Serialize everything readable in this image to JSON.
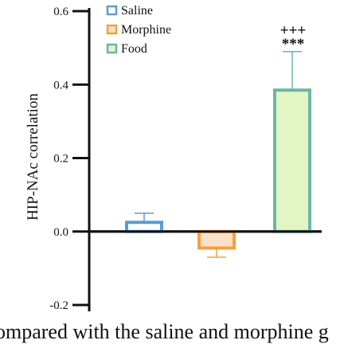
{
  "chart_data": {
    "type": "bar",
    "categories": [
      "Saline",
      "Morphine",
      "Food"
    ],
    "values": [
      0.025,
      -0.045,
      0.385
    ],
    "errors": [
      0.025,
      0.025,
      0.105
    ],
    "ylabel": "HIP-NAc correlation",
    "ylim": [
      -0.2,
      0.6
    ],
    "yticks": [
      "-0.2",
      "0.0",
      "0.2",
      "0.4",
      "0.6"
    ],
    "legend": {
      "placement": "top-left",
      "items": [
        "Saline",
        "Morphine",
        "Food"
      ]
    },
    "colors": {
      "edge": [
        "#5b9bd5",
        "#f4a040",
        "#6ab6a8"
      ],
      "fill": [
        "#ffffff",
        "#fbe1c8",
        "#e3f5c2"
      ]
    },
    "annotations": [
      "+++",
      "***"
    ],
    "grid": false
  },
  "caption": "ompared with the saline and morphine g"
}
